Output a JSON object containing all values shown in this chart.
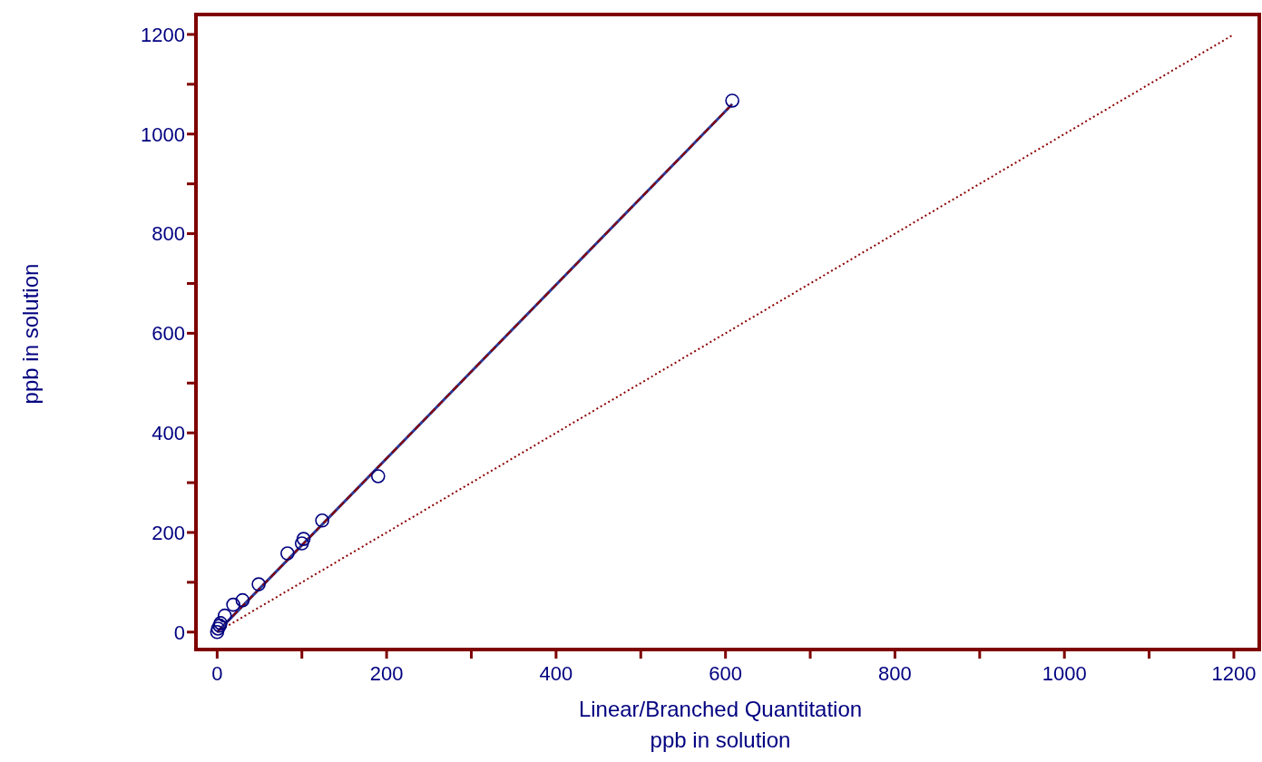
{
  "chart_data": {
    "type": "scatter",
    "xlabel": "Linear/Branched Quantitation\nppb in solution",
    "ylabel": "ppb in solution",
    "xlim": [
      -25,
      1230
    ],
    "ylim": [
      -35,
      1240
    ],
    "xticks": [
      0,
      {
        "value": 100,
        "label": null
      },
      200,
      {
        "value": 300,
        "label": null
      },
      400,
      {
        "value": 500,
        "label": null
      },
      600,
      {
        "value": 700,
        "label": null
      },
      800,
      {
        "value": 900,
        "label": null
      },
      1000,
      {
        "value": 1100,
        "label": null
      },
      1200
    ],
    "yticks": [
      0,
      {
        "value": 100,
        "label": null
      },
      200,
      {
        "value": 300,
        "label": null
      },
      400,
      {
        "value": 500,
        "label": null
      },
      600,
      {
        "value": 700,
        "label": null
      },
      800,
      {
        "value": 900,
        "label": null
      },
      1000,
      {
        "value": 1100,
        "label": null
      },
      1200
    ],
    "grid": false,
    "legend": false,
    "marker": "circle",
    "series": [
      {
        "type": "line",
        "color": "#2a3a9a",
        "line_style": "solid",
        "marker": "none",
        "x": [
          0,
          608
        ],
        "values": [
          0,
          1060
        ]
      },
      {
        "type": "line",
        "color": "#8b0000",
        "line_style": "dashed",
        "marker": "none",
        "x": [
          0,
          608
        ],
        "values": [
          0,
          1060
        ]
      },
      {
        "type": "line",
        "color": "#8b0000",
        "line_style": "dotted",
        "marker": "none",
        "x": [
          0,
          1200
        ],
        "values": [
          0,
          1200
        ]
      },
      {
        "type": "scatter",
        "color": "#000080",
        "x": [
          0,
          1,
          3,
          4,
          9,
          19,
          30,
          49,
          83,
          100,
          102,
          124,
          190,
          608
        ],
        "values": [
          0,
          7,
          13,
          18,
          33,
          55,
          64,
          96,
          158,
          178,
          187,
          224,
          313,
          1067
        ]
      }
    ]
  }
}
